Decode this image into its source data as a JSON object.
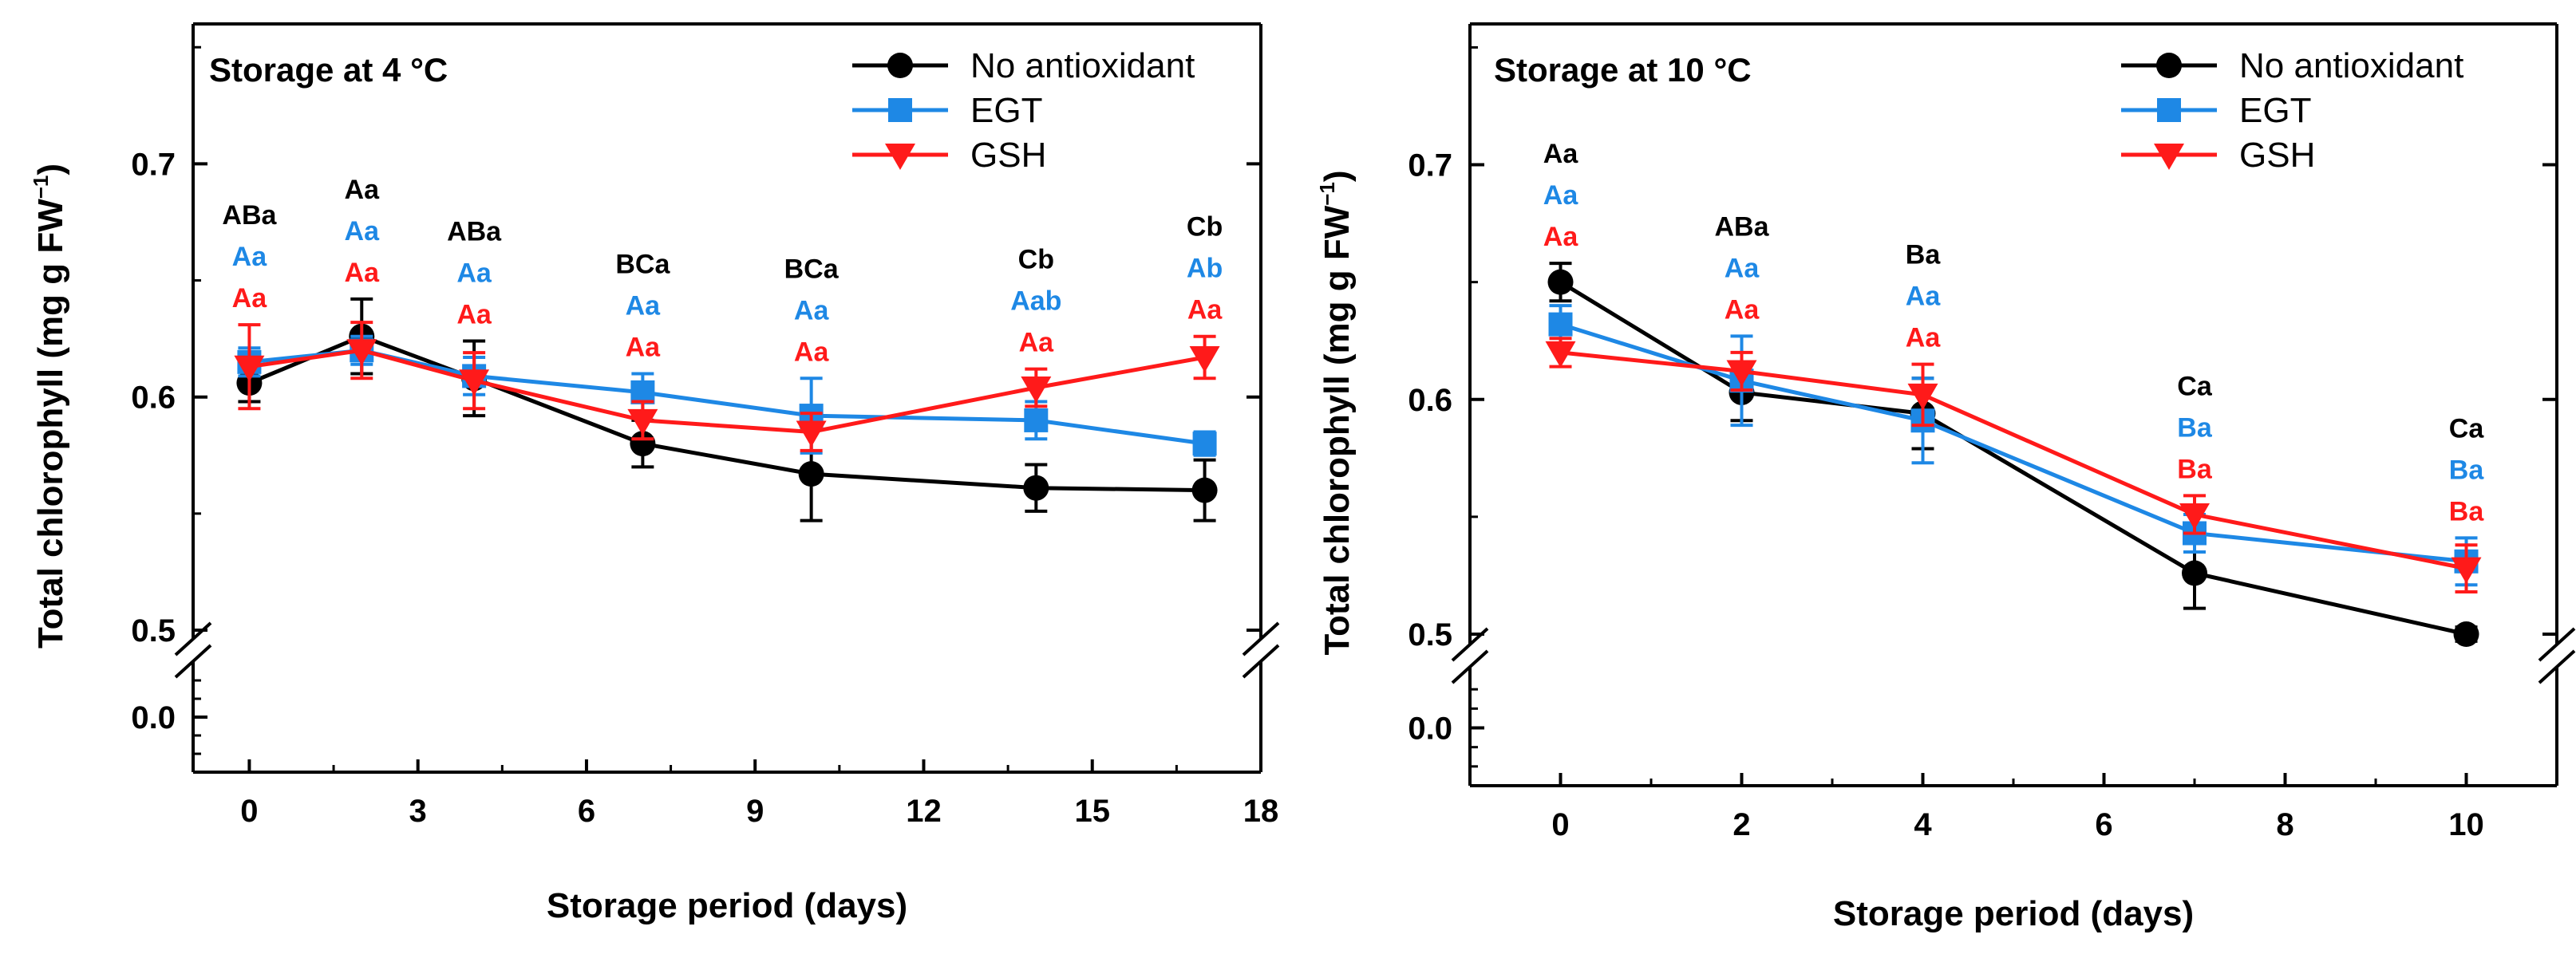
{
  "chart_data": [
    {
      "type": "line",
      "title": "Storage at 4 °C",
      "xlabel": "Storage period (days)",
      "ylabel_main": "Total chlorophyll (mg g FW",
      "ylabel_sup": "−1",
      "ylabel_close": ")",
      "xlim": [
        -1,
        18
      ],
      "xticks": [
        0,
        3,
        6,
        9,
        12,
        15,
        18
      ],
      "xtick_labels": [
        "0",
        "3",
        "6",
        "9",
        "12",
        "15",
        "18"
      ],
      "ylim_upper": [
        0.5,
        0.76
      ],
      "ylim_lower": [
        -0.03,
        0.03
      ],
      "yticks_upper": [
        0.5,
        0.6,
        0.7
      ],
      "ytick_labels_upper": [
        "0.5",
        "0.6",
        "0.7"
      ],
      "yticks_lower": [
        0.0
      ],
      "ytick_labels_lower": [
        "0.0"
      ],
      "x": [
        0,
        2,
        4,
        7,
        10,
        14,
        17
      ],
      "series": [
        {
          "name": "No antioxidant",
          "color": "#000000",
          "marker": "circle",
          "values": [
            0.606,
            0.626,
            0.608,
            0.58,
            0.567,
            0.561,
            0.56
          ],
          "errors": [
            0.008,
            0.016,
            0.016,
            0.01,
            0.02,
            0.01,
            0.013
          ]
        },
        {
          "name": "EGT",
          "color": "#1e88e5",
          "marker": "square",
          "values": [
            0.615,
            0.62,
            0.609,
            0.602,
            0.592,
            0.59,
            0.58
          ],
          "errors": [
            0.006,
            0.006,
            0.008,
            0.008,
            0.016,
            0.008,
            0.005
          ]
        },
        {
          "name": "GSH",
          "color": "#ff1a1a",
          "marker": "triangle-down",
          "values": [
            0.613,
            0.62,
            0.607,
            0.59,
            0.585,
            0.604,
            0.617
          ],
          "errors": [
            0.018,
            0.012,
            0.012,
            0.008,
            0.008,
            0.008,
            0.009
          ]
        }
      ],
      "annotations": [
        {
          "x": 0,
          "black": "ABa",
          "blue": "Aa",
          "red": "Aa"
        },
        {
          "x": 2,
          "black": "Aa",
          "blue": "Aa",
          "red": "Aa"
        },
        {
          "x": 4,
          "black": "ABa",
          "blue": "Aa",
          "red": "Aa"
        },
        {
          "x": 7,
          "black": "BCa",
          "blue": "Aa",
          "red": "Aa"
        },
        {
          "x": 10,
          "black": "BCa",
          "blue": "Aa",
          "red": "Aa"
        },
        {
          "x": 14,
          "black": "Cb",
          "blue": "Aab",
          "red": "Aa"
        },
        {
          "x": 17,
          "black": "Cb",
          "blue": "Ab",
          "red": "Aa"
        }
      ],
      "legend_position": "top-right"
    },
    {
      "type": "line",
      "title": "Storage at 10 °C",
      "xlabel": "Storage period (days)",
      "ylabel_main": "Total chlorophyll (mg g FW",
      "ylabel_sup": "−1",
      "ylabel_close": ")",
      "xlim": [
        -1,
        11
      ],
      "xticks": [
        0,
        2,
        4,
        6,
        8,
        10
      ],
      "xtick_labels": [
        "0",
        "2",
        "4",
        "6",
        "8",
        "10"
      ],
      "ylim_upper": [
        0.5,
        0.76
      ],
      "ylim_lower": [
        -0.03,
        0.03
      ],
      "yticks_upper": [
        0.5,
        0.6,
        0.7
      ],
      "ytick_labels_upper": [
        "0.5",
        "0.6",
        "0.7"
      ],
      "yticks_lower": [
        0.0
      ],
      "ytick_labels_lower": [
        "0.0"
      ],
      "x": [
        0,
        2,
        4,
        7,
        10
      ],
      "series": [
        {
          "name": "No antioxidant",
          "color": "#000000",
          "marker": "circle",
          "values": [
            0.65,
            0.603,
            0.594,
            0.526,
            0.5
          ],
          "errors": [
            0.008,
            0.012,
            0.015,
            0.015,
            0.003
          ]
        },
        {
          "name": "EGT",
          "color": "#1e88e5",
          "marker": "square",
          "values": [
            0.632,
            0.608,
            0.591,
            0.543,
            0.531
          ],
          "errors": [
            0.008,
            0.019,
            0.018,
            0.008,
            0.01
          ]
        },
        {
          "name": "GSH",
          "color": "#ff1a1a",
          "marker": "triangle-down",
          "values": [
            0.62,
            0.612,
            0.602,
            0.551,
            0.528
          ],
          "errors": [
            0.006,
            0.008,
            0.013,
            0.008,
            0.01
          ]
        }
      ],
      "annotations": [
        {
          "x": 0,
          "black": "Aa",
          "blue": "Aa",
          "red": "Aa"
        },
        {
          "x": 2,
          "black": "ABa",
          "blue": "Aa",
          "red": "Aa"
        },
        {
          "x": 4,
          "black": "Ba",
          "blue": "Aa",
          "red": "Aa"
        },
        {
          "x": 7,
          "black": "Ca",
          "blue": "Ba",
          "red": "Ba"
        },
        {
          "x": 10,
          "black": "Ca",
          "blue": "Ba",
          "red": "Ba"
        }
      ],
      "legend_position": "top-right"
    }
  ]
}
